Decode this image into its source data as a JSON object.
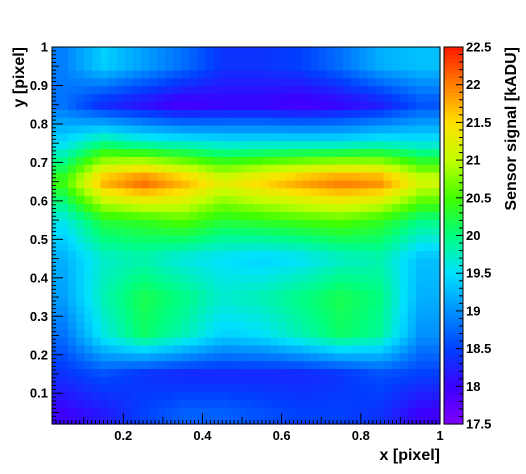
{
  "chart_data": {
    "type": "heatmap",
    "title": "",
    "xlabel": "x [pixel]",
    "ylabel": "y [pixel]",
    "zlabel": "Sensor signal [kADU]",
    "xlim": [
      0.02,
      1.0
    ],
    "ylim": [
      0.02,
      1.0
    ],
    "zlim": [
      17.5,
      22.5
    ],
    "x_ticks": [
      "0.2",
      "0.4",
      "0.6",
      "0.8",
      "1"
    ],
    "y_ticks": [
      "0.1",
      "0.2",
      "0.3",
      "0.4",
      "0.5",
      "0.6",
      "0.7",
      "0.8",
      "0.9",
      "1"
    ],
    "z_ticks": [
      "17.5",
      "18",
      "18.5",
      "19",
      "19.5",
      "20",
      "20.5",
      "21",
      "21.5",
      "22",
      "22.5"
    ],
    "palette": [
      "#7f00ff",
      "#3c00ff",
      "#0040ff",
      "#0090ff",
      "#00e0ff",
      "#00ff80",
      "#40ff00",
      "#c0ff00",
      "#ffe000",
      "#ff8000",
      "#ff1a00"
    ],
    "x": [
      0.05,
      0.15,
      0.25,
      0.35,
      0.45,
      0.55,
      0.65,
      0.75,
      0.85,
      0.95
    ],
    "y": [
      0.05,
      0.15,
      0.25,
      0.35,
      0.45,
      0.55,
      0.65,
      0.75,
      0.85,
      0.95
    ],
    "z": [
      [
        18.0,
        18.2,
        18.5,
        18.7,
        18.7,
        18.6,
        18.5,
        18.5,
        18.4,
        18.0
      ],
      [
        18.4,
        18.6,
        18.4,
        18.3,
        18.3,
        18.3,
        18.3,
        18.4,
        18.6,
        18.5
      ],
      [
        18.8,
        19.6,
        20.1,
        19.8,
        19.4,
        19.5,
        19.8,
        20.1,
        19.9,
        19.0
      ],
      [
        19.1,
        19.8,
        20.2,
        20.0,
        19.7,
        19.8,
        20.0,
        20.2,
        20.0,
        19.2
      ],
      [
        19.2,
        19.7,
        19.8,
        19.6,
        19.5,
        19.4,
        19.5,
        19.7,
        19.8,
        19.3
      ],
      [
        19.6,
        20.3,
        20.4,
        20.6,
        20.3,
        20.4,
        20.5,
        20.6,
        20.4,
        20.0
      ],
      [
        20.5,
        21.8,
        22.2,
        21.8,
        21.3,
        21.6,
        21.9,
        22.1,
        22.0,
        21.2
      ],
      [
        19.5,
        20.0,
        19.8,
        19.7,
        19.6,
        19.6,
        19.6,
        19.6,
        19.7,
        19.6
      ],
      [
        18.8,
        18.3,
        18.1,
        17.9,
        18.0,
        18.0,
        17.9,
        18.0,
        18.2,
        18.6
      ],
      [
        18.9,
        19.4,
        19.1,
        18.8,
        18.4,
        18.4,
        18.5,
        18.8,
        19.2,
        19.3
      ]
    ]
  }
}
